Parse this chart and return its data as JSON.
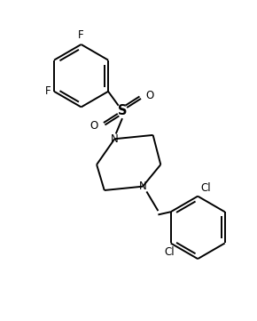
{
  "bg_color": "#ffffff",
  "line_color": "#000000",
  "lw": 1.4,
  "fs": 8.5,
  "figsize": [
    2.9,
    3.61
  ],
  "dpi": 100,
  "xlim": [
    0,
    10
  ],
  "ylim": [
    0,
    12.5
  ]
}
